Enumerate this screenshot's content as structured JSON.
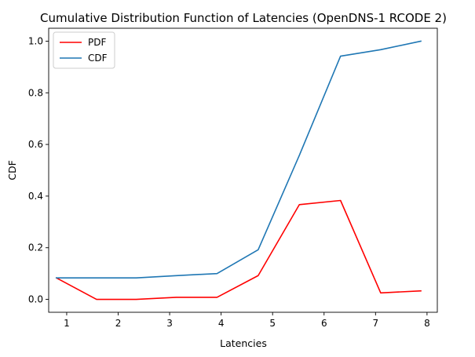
{
  "chart_data": {
    "type": "line",
    "title": "Cumulative Distribution Function of Latencies (OpenDNS-1 RCODE 2)",
    "xlabel": "Latencies",
    "ylabel": "CDF",
    "xlim": [
      0.65,
      8.2
    ],
    "ylim": [
      -0.05,
      1.05
    ],
    "x_ticks": [
      1,
      2,
      3,
      4,
      5,
      6,
      7,
      8
    ],
    "y_ticks": [
      0.0,
      0.2,
      0.4,
      0.6,
      0.8,
      1.0
    ],
    "x_tick_labels": [
      "1",
      "2",
      "3",
      "4",
      "5",
      "6",
      "7",
      "8"
    ],
    "y_tick_labels": [
      "0.0",
      "0.2",
      "0.4",
      "0.6",
      "0.8",
      "1.0"
    ],
    "grid": false,
    "legend_position": "top-left",
    "series": [
      {
        "name": "PDF",
        "color": "#ff0000",
        "x": [
          0.8,
          1.58,
          2.35,
          3.13,
          3.92,
          4.72,
          5.52,
          6.32,
          7.1,
          7.88
        ],
        "y": [
          0.083,
          0.0,
          0.0,
          0.008,
          0.008,
          0.092,
          0.367,
          0.383,
          0.025,
          0.033
        ]
      },
      {
        "name": "CDF",
        "color": "#1f77b4",
        "x": [
          0.8,
          1.58,
          2.35,
          3.13,
          3.92,
          4.72,
          5.52,
          6.32,
          7.1,
          7.88
        ],
        "y": [
          0.083,
          0.083,
          0.083,
          0.092,
          0.1,
          0.192,
          0.558,
          0.942,
          0.967,
          1.0
        ]
      }
    ]
  }
}
